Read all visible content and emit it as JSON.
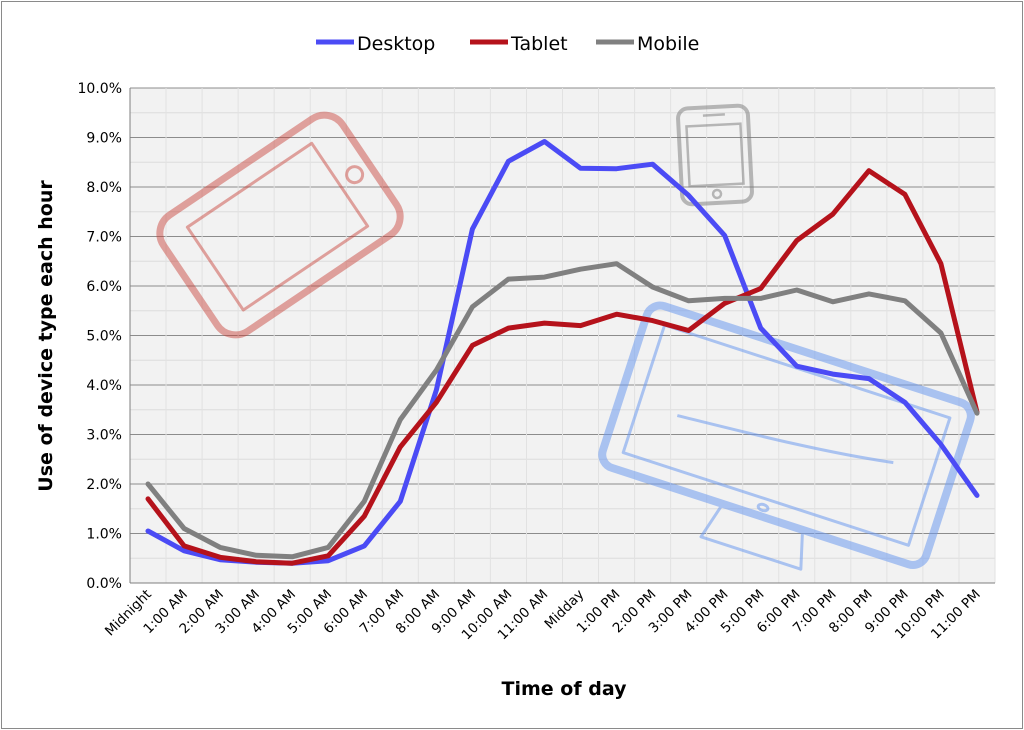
{
  "chart_data": {
    "type": "line",
    "xlabel": "Time of day",
    "ylabel": "Use of device type each hour",
    "ylim": [
      0,
      10
    ],
    "y_ticks": [
      "0.0%",
      "1.0%",
      "2.0%",
      "3.0%",
      "4.0%",
      "5.0%",
      "6.0%",
      "7.0%",
      "8.0%",
      "9.0%",
      "10.0%"
    ],
    "categories": [
      "Midnight",
      "1:00 AM",
      "2:00 AM",
      "3:00 AM",
      "4:00 AM",
      "5:00 AM",
      "6:00 AM",
      "7:00 AM",
      "8:00 AM",
      "9:00 AM",
      "10:00 AM",
      "11:00 AM",
      "Midday",
      "1:00 PM",
      "2:00 PM",
      "3:00 PM",
      "4:00 PM",
      "5:00 PM",
      "6:00 PM",
      "7:00 PM",
      "8:00 PM",
      "9:00 PM",
      "10:00 PM",
      "11:00 PM"
    ],
    "grid": true,
    "legend_position": "top",
    "series": [
      {
        "name": "Desktop",
        "color": "#4b4bf5",
        "values": [
          1.05,
          0.65,
          0.47,
          0.42,
          0.4,
          0.45,
          0.75,
          1.65,
          3.9,
          7.15,
          8.52,
          8.92,
          8.38,
          8.37,
          8.46,
          7.83,
          7.02,
          5.15,
          4.38,
          4.22,
          4.13,
          3.65,
          2.8,
          1.77
        ]
      },
      {
        "name": "Tablet",
        "color": "#b5121b",
        "values": [
          1.7,
          0.75,
          0.52,
          0.43,
          0.4,
          0.55,
          1.35,
          2.75,
          3.65,
          4.8,
          5.15,
          5.25,
          5.2,
          5.43,
          5.3,
          5.1,
          5.65,
          5.95,
          6.92,
          7.45,
          8.33,
          7.85,
          6.45,
          3.45
        ]
      },
      {
        "name": "Mobile",
        "color": "#808080",
        "values": [
          2.0,
          1.1,
          0.72,
          0.56,
          0.53,
          0.72,
          1.65,
          3.3,
          4.3,
          5.58,
          6.14,
          6.18,
          6.34,
          6.45,
          5.98,
          5.7,
          5.75,
          5.75,
          5.92,
          5.68,
          5.84,
          5.7,
          5.05,
          3.43
        ]
      }
    ]
  },
  "icons": {
    "tablet": "tablet-icon",
    "phone": "phone-icon",
    "monitor": "monitor-icon"
  }
}
